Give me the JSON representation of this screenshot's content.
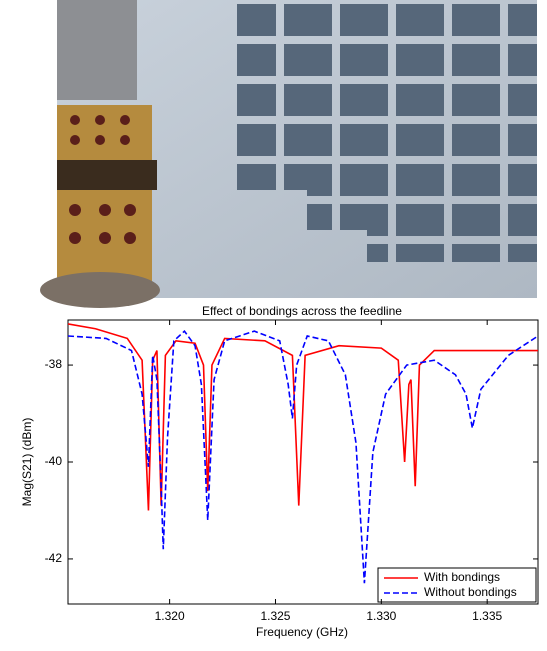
{
  "chart_data": {
    "type": "line",
    "title": "Effect of bondings across the feedline",
    "x_label": "Frequency (GHz)",
    "y_label": "Mag(S21) (dBm)",
    "xlim": [
      1.3152,
      1.3374
    ],
    "ylim": [
      -42.93,
      -37.07
    ],
    "xticks": [
      {
        "value": 1.32,
        "label": "1.320"
      },
      {
        "value": 1.325,
        "label": "1.325"
      },
      {
        "value": 1.33,
        "label": "1.330"
      },
      {
        "value": 1.335,
        "label": "1.335"
      }
    ],
    "yticks": [
      -38,
      -40,
      -42
    ],
    "legend": "lower right",
    "series": [
      {
        "name": "With bondings",
        "color": "#ff0000",
        "dash": "solid",
        "x": [
          1.3152,
          1.3165,
          1.318,
          1.3187,
          1.319,
          1.3192,
          1.3194,
          1.3196,
          1.3198,
          1.3203,
          1.3212,
          1.3216,
          1.3218,
          1.322,
          1.3226,
          1.3245,
          1.3258,
          1.3261,
          1.3264,
          1.328,
          1.33,
          1.3308,
          1.3311,
          1.3313,
          1.3314,
          1.3316,
          1.3318,
          1.3325,
          1.335,
          1.3374
        ],
        "values": [
          -37.15,
          -37.25,
          -37.45,
          -37.9,
          -41.0,
          -37.9,
          -37.7,
          -40.9,
          -37.8,
          -37.5,
          -37.55,
          -38.0,
          -40.6,
          -38.0,
          -37.45,
          -37.5,
          -37.8,
          -40.9,
          -37.8,
          -37.6,
          -37.65,
          -37.9,
          -40.0,
          -38.4,
          -38.3,
          -40.5,
          -38.0,
          -37.7,
          -37.7,
          -37.7
        ]
      },
      {
        "name": "Without bondings",
        "color": "#0000ff",
        "dash": "dashed",
        "x": [
          1.3152,
          1.317,
          1.3182,
          1.3187,
          1.319,
          1.3192,
          1.3194,
          1.3196,
          1.3197,
          1.3199,
          1.3202,
          1.3207,
          1.3212,
          1.3215,
          1.3218,
          1.3221,
          1.3226,
          1.324,
          1.3252,
          1.3256,
          1.3258,
          1.326,
          1.3265,
          1.3275,
          1.3283,
          1.3288,
          1.3292,
          1.3296,
          1.3302,
          1.3312,
          1.3325,
          1.3335,
          1.334,
          1.3343,
          1.3347,
          1.336,
          1.3374
        ],
        "values": [
          -37.4,
          -37.45,
          -37.7,
          -38.6,
          -40.1,
          -37.8,
          -38.3,
          -40.5,
          -41.8,
          -39.5,
          -37.5,
          -37.3,
          -37.6,
          -38.4,
          -41.2,
          -38.3,
          -37.5,
          -37.3,
          -37.5,
          -38.4,
          -39.1,
          -38.0,
          -37.4,
          -37.5,
          -38.2,
          -39.6,
          -42.5,
          -39.8,
          -38.6,
          -38.0,
          -37.9,
          -38.2,
          -38.6,
          -39.3,
          -38.5,
          -37.8,
          -37.4
        ]
      }
    ]
  }
}
